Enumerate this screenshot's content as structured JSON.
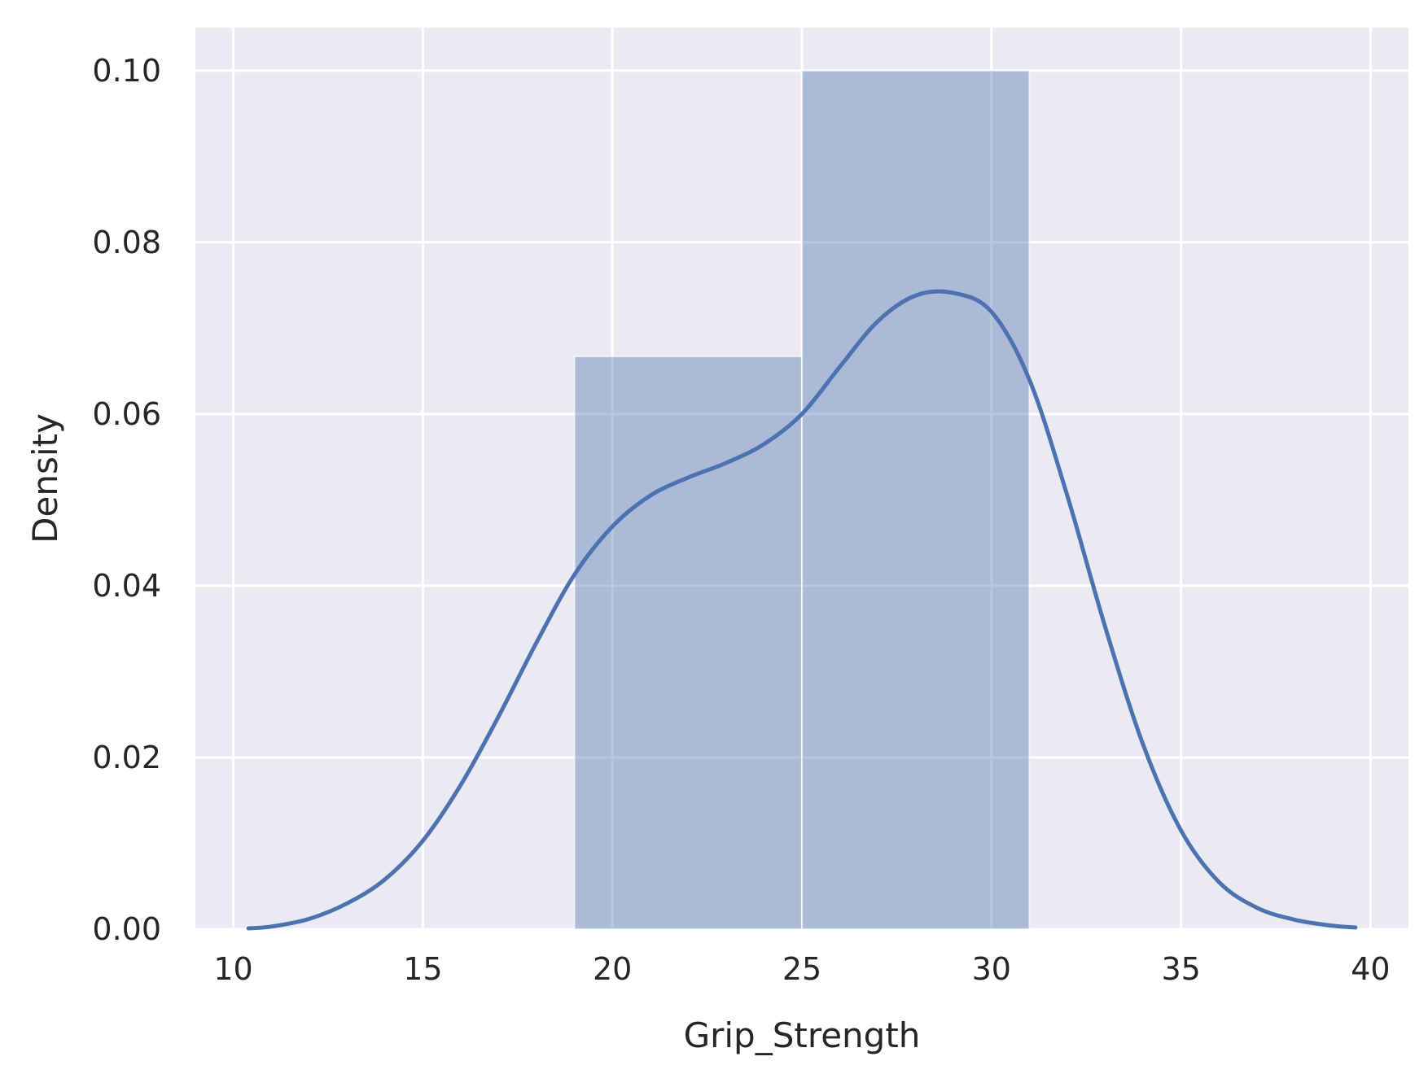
{
  "chart_data": {
    "type": "bar",
    "title": "",
    "xlabel": "Grip_Strength",
    "ylabel": "Density",
    "xlim": [
      9,
      41
    ],
    "ylim": [
      0,
      0.105
    ],
    "x_ticks": [
      10,
      15,
      20,
      25,
      30,
      35,
      40
    ],
    "x_tick_labels": [
      "10",
      "15",
      "20",
      "25",
      "30",
      "35",
      "40"
    ],
    "y_ticks": [
      0,
      0.02,
      0.04,
      0.06,
      0.08,
      0.1
    ],
    "y_tick_labels": [
      "0.00",
      "0.02",
      "0.04",
      "0.06",
      "0.08",
      "0.10"
    ],
    "grid": true,
    "histogram": {
      "bins": [
        {
          "x0": 19,
          "x1": 25,
          "density": 0.0667
        },
        {
          "x0": 25,
          "x1": 31,
          "density": 0.1
        }
      ],
      "color": "#4c72b0"
    },
    "kde": {
      "x": [
        10.4,
        11,
        12,
        13,
        14,
        15,
        16,
        17,
        18,
        19,
        20,
        21,
        22,
        23,
        24,
        25,
        26,
        27,
        28,
        29,
        30,
        31,
        32,
        33,
        34,
        35,
        36,
        37,
        38,
        39,
        39.6
      ],
      "y": [
        0.0001,
        0.0003,
        0.0012,
        0.003,
        0.0058,
        0.0103,
        0.0168,
        0.0248,
        0.0334,
        0.0413,
        0.0469,
        0.0505,
        0.0526,
        0.0543,
        0.0565,
        0.06,
        0.0655,
        0.0708,
        0.0738,
        0.0741,
        0.0719,
        0.064,
        0.0505,
        0.0352,
        0.0215,
        0.0115,
        0.0055,
        0.0025,
        0.0011,
        0.0004,
        0.0002
      ],
      "color": "#4c72b0"
    },
    "colors": {
      "plot_background": "#eaeaf2",
      "grid": "#ffffff",
      "text": "#262626"
    }
  }
}
